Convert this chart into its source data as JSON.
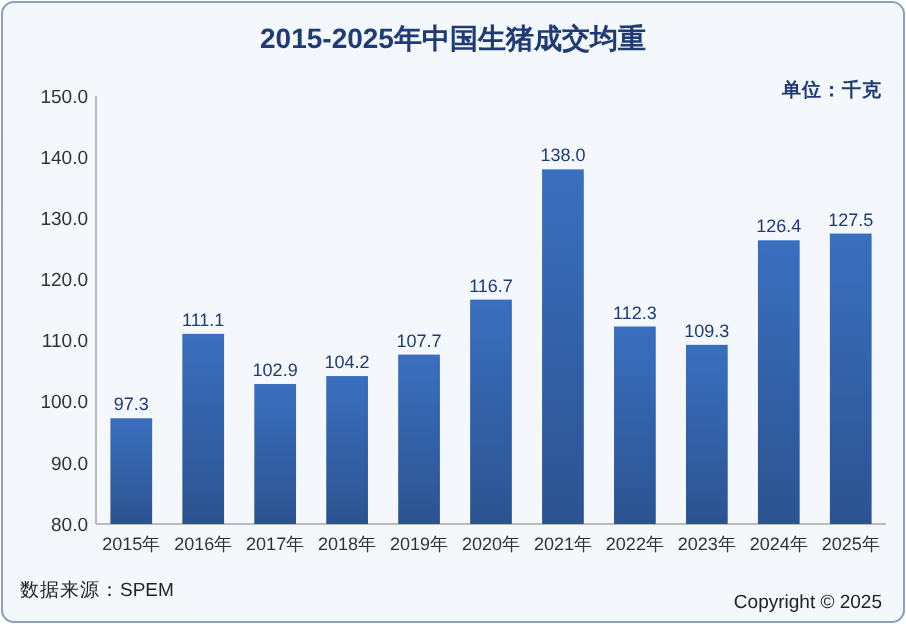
{
  "chart_data": {
    "type": "bar",
    "title": "2015-2025年中国生猪成交均重",
    "categories": [
      "2015年",
      "2016年",
      "2017年",
      "2018年",
      "2019年",
      "2020年",
      "2021年",
      "2022年",
      "2023年",
      "2024年",
      "2025年"
    ],
    "values": [
      97.3,
      111.1,
      102.9,
      104.2,
      107.7,
      116.7,
      138.0,
      112.3,
      109.3,
      126.4,
      127.5
    ],
    "value_labels": [
      "97.3",
      "111.1",
      "102.9",
      "104.2",
      "107.7",
      "116.7",
      "138.0",
      "112.3",
      "109.3",
      "126.4",
      "127.5"
    ],
    "color": "#3a6fbf",
    "ylim": [
      80,
      150
    ],
    "yticks": [
      {
        "value": 80,
        "label": "80.0"
      },
      {
        "value": 90,
        "label": "90.0"
      },
      {
        "value": 100,
        "label": "100.0"
      },
      {
        "value": 110,
        "label": "110.0"
      },
      {
        "value": 120,
        "label": "120.0"
      },
      {
        "value": 130,
        "label": "130.0"
      },
      {
        "value": 140,
        "label": "140.0"
      },
      {
        "value": 150,
        "label": "150.0"
      }
    ],
    "grid": false,
    "annotations": [
      "单位：千克",
      "数据来源：SPEM",
      "Copyright © 2025"
    ]
  }
}
